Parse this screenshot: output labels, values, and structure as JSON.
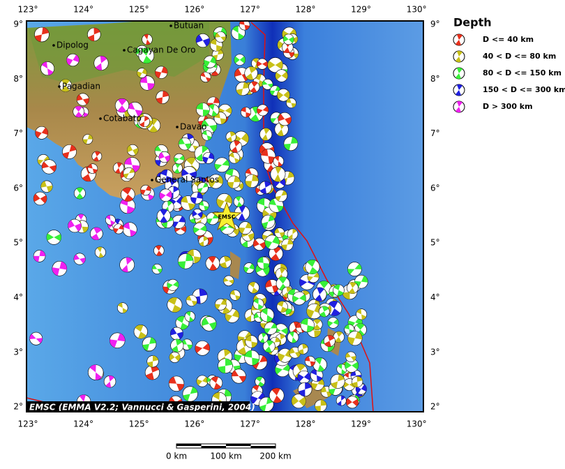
{
  "map": {
    "lon_labels": [
      "123°",
      "124°",
      "125°",
      "126°",
      "127°",
      "128°",
      "129°",
      "130°"
    ],
    "lat_labels": [
      "9°",
      "8°",
      "7°",
      "6°",
      "5°",
      "4°",
      "3°",
      "2°"
    ],
    "cities": [
      "Dipolog",
      "Cagayan De Oro",
      "Butuan",
      "Pagadian",
      "Cotabato",
      "Davao",
      "General Santos"
    ],
    "epicenter_label": "EMSC",
    "credit": "EMSC (EMMA V2.2; Vannucci & Gasperini, 2004)",
    "scale_labels": [
      "0 km",
      "100 km",
      "200 km"
    ]
  },
  "legend": {
    "title": "Depth",
    "items": [
      {
        "label": "D <= 40 km",
        "color": "#e8301c"
      },
      {
        "label": "40 < D <= 80 km",
        "color": "#c8c018"
      },
      {
        "label": "80 < D <= 150 km",
        "color": "#38f038"
      },
      {
        "label": "150 < D <= 300 km",
        "color": "#2020e0"
      },
      {
        "label": "D > 300 km",
        "color": "#f020f0"
      }
    ]
  }
}
